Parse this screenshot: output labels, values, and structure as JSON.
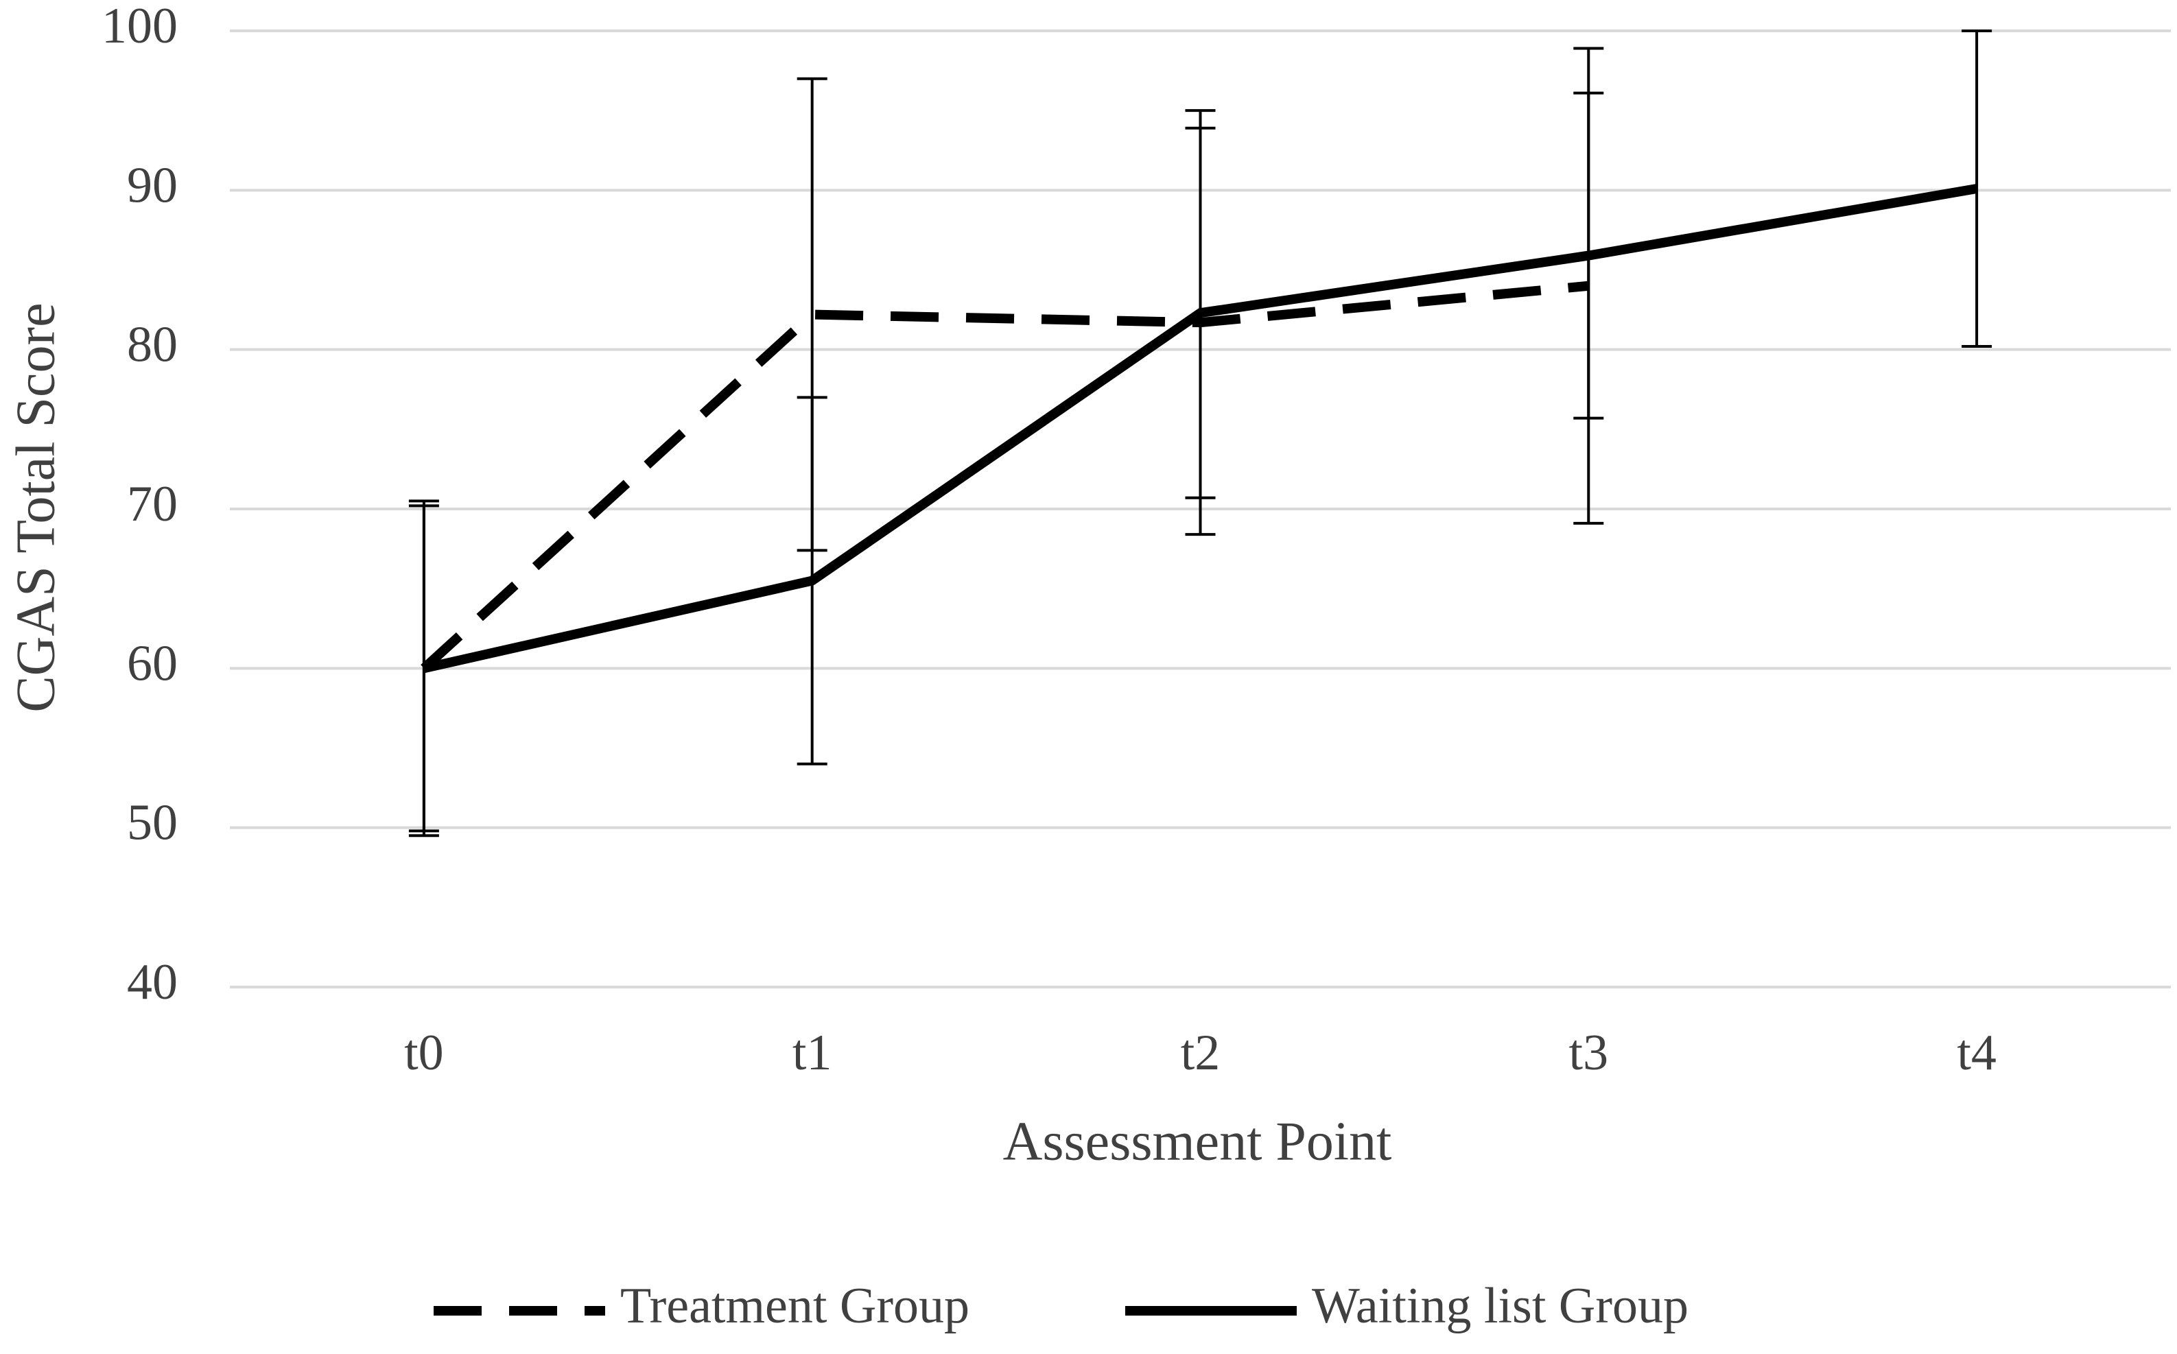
{
  "chart_data": {
    "type": "line",
    "x_label": "Assessment Point",
    "y_label": "CGAS Total Score",
    "categories": [
      "t0",
      "t1",
      "t2",
      "t3",
      "t4"
    ],
    "series": [
      {
        "name": "Treatment Group",
        "color": "#000000",
        "dash": true,
        "values": [
          60,
          82.2,
          81.7,
          84,
          null
        ],
        "errors": [
          10.5,
          14.8,
          13.3,
          14.9,
          null
        ]
      },
      {
        "name": "Waiting list Group",
        "color": "#000000",
        "dash": false,
        "values": [
          60,
          65.5,
          82.3,
          85.9,
          90.1
        ],
        "errors": [
          10.2,
          11.5,
          11.6,
          10.2,
          9.9
        ]
      }
    ],
    "ylim": [
      40,
      100
    ],
    "yticks": [
      40,
      50,
      60,
      70,
      80,
      90,
      100
    ],
    "grid": true
  }
}
